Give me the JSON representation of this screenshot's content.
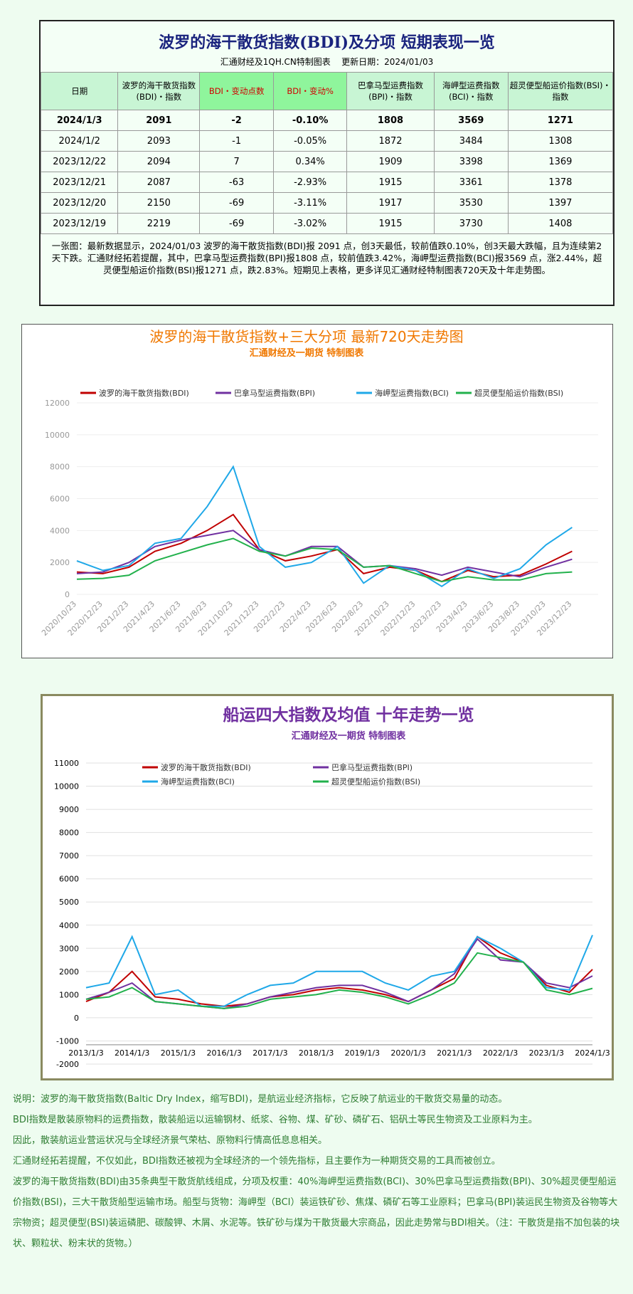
{
  "header": {
    "title": "波罗的海干散货指数(BDI)及分项 短期表现一览",
    "subtitle": "汇通财经及1QH.CN特制图表",
    "update": "更新日期：2024/01/03"
  },
  "table": {
    "columns": [
      "日期",
      "波罗的海干散货指数(BDI)・指数",
      "BDI・变动点数",
      "BDI・变动%",
      "巴拿马型运费指数(BPI)・指数",
      "海岬型运费指数(BCI)・指数",
      "超灵便型船运价指数(BSI)・指数"
    ],
    "rows": [
      [
        "2024/1/3",
        "2091",
        "-2",
        "-0.10%",
        "1808",
        "3569",
        "1271"
      ],
      [
        "2024/1/2",
        "2093",
        "-1",
        "-0.05%",
        "1872",
        "3484",
        "1308"
      ],
      [
        "2023/12/22",
        "2094",
        "7",
        "0.34%",
        "1909",
        "3398",
        "1369"
      ],
      [
        "2023/12/21",
        "2087",
        "-63",
        "-2.93%",
        "1915",
        "3361",
        "1378"
      ],
      [
        "2023/12/20",
        "2150",
        "-69",
        "-3.11%",
        "1917",
        "3530",
        "1397"
      ],
      [
        "2023/12/19",
        "2219",
        "-69",
        "-3.02%",
        "1915",
        "3730",
        "1408"
      ]
    ]
  },
  "summary": "一张图：最新数据显示，2024/01/03 波罗的海干散货指数(BDI)报 2091 点，创3天最低，较前值跌0.10%，创3天最大跌幅，且为连续第2天下跌。汇通财经拓若提醒，其中，巴拿马型运费指数(BPI)报1808 点，较前值跌3.42%，海岬型运费指数(BCI)报3569 点，涨2.44%，超灵便型船运价指数(BSI)报1271 点，跌2.83%。短期见上表格，更多详见汇通财经特制图表720天及十年走势图。",
  "chart_data": [
    {
      "type": "line",
      "title": "波罗的海干散货指数+三大分项 最新720天走势图",
      "subtitle": "汇通财经及一期货 特制图表",
      "categories": [
        "2020/10/23",
        "2020/12/23",
        "2021/2/23",
        "2021/4/23",
        "2021/6/23",
        "2021/8/23",
        "2021/10/23",
        "2021/12/23",
        "2022/2/23",
        "2022/4/23",
        "2022/6/23",
        "2022/8/23",
        "2022/10/23",
        "2022/12/23",
        "2023/2/23",
        "2023/4/23",
        "2023/6/23",
        "2023/8/23",
        "2023/10/23",
        "2023/12/23"
      ],
      "series": [
        {
          "name": "波罗的海干散货指数(BDI)",
          "color": "#c00000",
          "values": [
            1400,
            1300,
            1700,
            2700,
            3200,
            4000,
            5000,
            2800,
            2100,
            2400,
            2800,
            1300,
            1700,
            1500,
            800,
            1500,
            1100,
            1200,
            1900,
            2700
          ]
        },
        {
          "name": "巴拿马型运费指数(BPI)",
          "color": "#7030a0",
          "values": [
            1300,
            1400,
            2000,
            3000,
            3400,
            3700,
            4000,
            2800,
            2400,
            3000,
            3000,
            1700,
            1800,
            1600,
            1200,
            1700,
            1400,
            1100,
            1700,
            2200
          ]
        },
        {
          "name": "海岬型运费指数(BCI)",
          "color": "#1fa8e8",
          "values": [
            2100,
            1500,
            1800,
            3200,
            3500,
            5500,
            8000,
            3000,
            1700,
            2000,
            3000,
            700,
            1800,
            1500,
            500,
            1600,
            1000,
            1600,
            3100,
            4200
          ]
        },
        {
          "name": "超灵便型船运价指数(BSI)",
          "color": "#22b14c",
          "values": [
            950,
            1000,
            1200,
            2100,
            2600,
            3100,
            3500,
            2700,
            2400,
            2900,
            2800,
            1700,
            1800,
            1300,
            800,
            1100,
            900,
            900,
            1300,
            1400
          ]
        }
      ],
      "ylim": [
        0,
        12000
      ],
      "yticks": [
        0,
        2000,
        4000,
        6000,
        8000,
        10000,
        12000
      ],
      "legend": "top"
    },
    {
      "type": "line",
      "title": "船运四大指数及均值 十年走势一览",
      "subtitle": "汇通财经及一期货 特制图表",
      "categories": [
        "2013/1/3",
        null,
        "2014/1/3",
        null,
        "2015/1/3",
        null,
        "2016/1/3",
        null,
        "2017/1/3",
        null,
        "2018/1/3",
        null,
        "2019/1/3",
        null,
        "2020/1/3",
        null,
        "2021/1/3",
        null,
        "2022/1/3",
        null,
        "2023/1/3",
        null,
        "2024/1/3"
      ],
      "series": [
        {
          "name": "波罗的海干散货指数(BDI)",
          "color": "#c00000",
          "values": [
            700,
            1100,
            2000,
            900,
            800,
            600,
            500,
            600,
            900,
            1000,
            1200,
            1300,
            1200,
            1000,
            700,
            1200,
            1700,
            3500,
            2800,
            2400,
            1400,
            1100,
            2091
          ]
        },
        {
          "name": "巴拿马型运费指数(BPI)",
          "color": "#7030a0",
          "values": [
            800,
            1100,
            1500,
            700,
            600,
            500,
            400,
            600,
            900,
            1100,
            1300,
            1400,
            1400,
            1100,
            700,
            1200,
            1900,
            3400,
            2500,
            2400,
            1500,
            1300,
            1808
          ]
        },
        {
          "name": "海岬型运费指数(BCI)",
          "color": "#1fa8e8",
          "values": [
            1300,
            1500,
            3500,
            1000,
            1200,
            500,
            500,
            1000,
            1400,
            1500,
            2000,
            2000,
            2000,
            1500,
            1200,
            1800,
            2000,
            3500,
            3000,
            2400,
            1300,
            1200,
            3569
          ]
        },
        {
          "name": "超灵便型船运价指数(BSI)",
          "color": "#22b14c",
          "values": [
            800,
            900,
            1300,
            700,
            600,
            500,
            400,
            500,
            800,
            900,
            1000,
            1200,
            1100,
            900,
            600,
            1000,
            1500,
            2800,
            2600,
            2400,
            1200,
            1000,
            1271
          ]
        }
      ],
      "ylim": [
        -2000,
        11000
      ],
      "yticks": [
        -2000,
        -1000,
        0,
        1000,
        2000,
        3000,
        4000,
        5000,
        6000,
        7000,
        8000,
        9000,
        10000,
        11000
      ],
      "legend": "top"
    }
  ],
  "notes": [
    "说明：波罗的海干散货指数(Baltic Dry Index，缩写BDI)，是航运业经济指标，它反映了航运业的干散货交易量的动态。",
    "BDI指数是散装原物料的运费指数，散装船运以运输钢材、纸浆、谷物、煤、矿砂、磷矿石、铝矾土等民生物资及工业原料为主。",
    "因此，散装航运业营运状况与全球经济景气荣枯、原物料行情高低息息相关。",
    "汇通财经拓若提醒，不仅如此，BDI指数还被视为全球经济的一个领先指标，且主要作为一种期货交易的工具而被创立。",
    "波罗的海干散货指数(BDI)由35条典型干散货航线组成，分项及权重：40%海岬型运费指数(BCI)、30%巴拿马型运费指数(BPI)、30%超灵便型船运价指数(BSI)，三大干散货船型运输市场。船型与货物：海岬型（BCI）装运铁矿砂、焦煤、磷矿石等工业原料；巴拿马(BPI)装运民生物资及谷物等大宗物资；超灵便型(BSI)装运磷肥、碳酸钾、木屑、水泥等。铁矿砂与煤为干散货最大宗商品，因此走势常与BDI相关。（注：干散货是指不加包装的块状、颗粒状、粉末状的货物。）"
  ]
}
